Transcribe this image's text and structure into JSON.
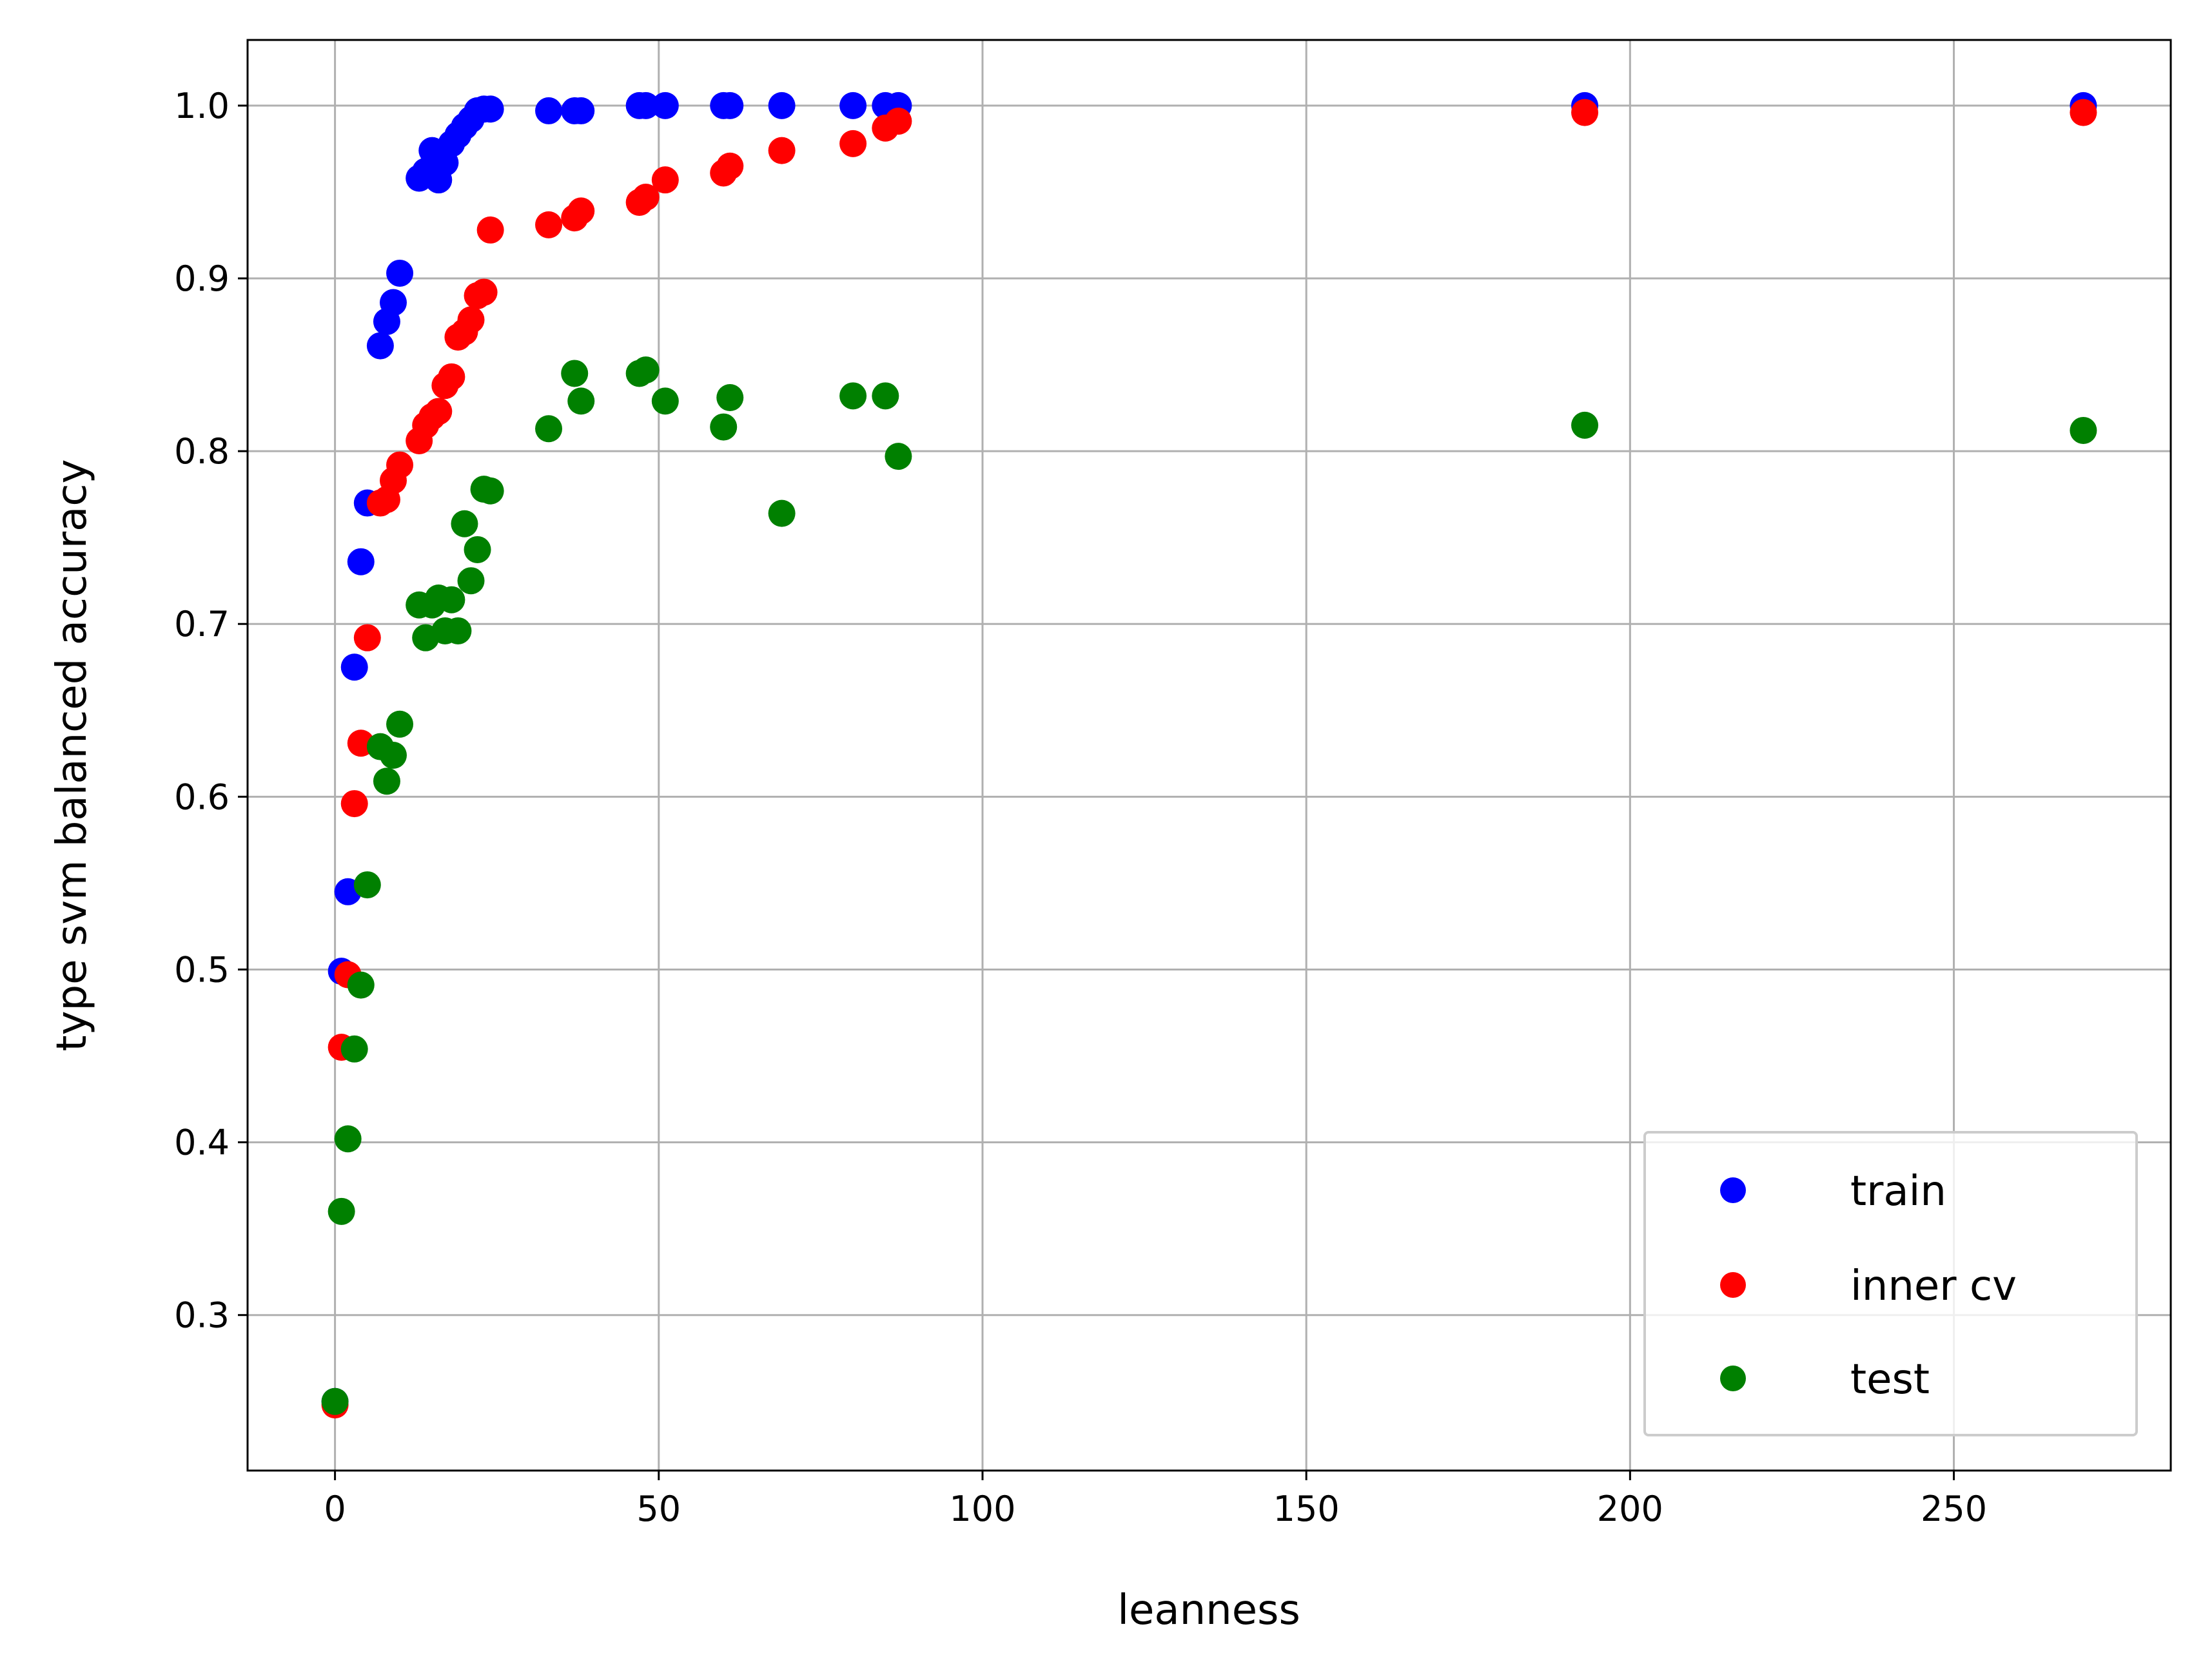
{
  "chart_data": {
    "type": "scatter",
    "title": "",
    "xlabel": "leanness",
    "ylabel": "type svm balanced accuracy",
    "xlim": [
      -13.5,
      283.5
    ],
    "ylim": [
      0.21,
      1.038
    ],
    "xticks": [
      0,
      50,
      100,
      150,
      200,
      250
    ],
    "xtick_labels": [
      "0",
      "50",
      "100",
      "150",
      "200",
      "250"
    ],
    "yticks": [
      0.3,
      0.4,
      0.5,
      0.6,
      0.7,
      0.8,
      0.9,
      1.0
    ],
    "ytick_labels": [
      "0.3",
      "0.4",
      "0.5",
      "0.6",
      "0.7",
      "0.8",
      "0.9",
      "1.0"
    ],
    "grid": true,
    "legend_position": "lower-right",
    "series": [
      {
        "name": "train",
        "color": "#0000ff",
        "points": [
          [
            0,
            0.25
          ],
          [
            1,
            0.499
          ],
          [
            2,
            0.545
          ],
          [
            3,
            0.675
          ],
          [
            4,
            0.736
          ],
          [
            5,
            0.77
          ],
          [
            7,
            0.861
          ],
          [
            8,
            0.875
          ],
          [
            9,
            0.886
          ],
          [
            10,
            0.903
          ],
          [
            13,
            0.958
          ],
          [
            14,
            0.962
          ],
          [
            15,
            0.974
          ],
          [
            16,
            0.957
          ],
          [
            17,
            0.967
          ],
          [
            18,
            0.978
          ],
          [
            19,
            0.983
          ],
          [
            20,
            0.988
          ],
          [
            21,
            0.992
          ],
          [
            22,
            0.997
          ],
          [
            23,
            0.998
          ],
          [
            24,
            0.998
          ],
          [
            33,
            0.997
          ],
          [
            37,
            0.997
          ],
          [
            38,
            0.997
          ],
          [
            47,
            1.0
          ],
          [
            48,
            1.0
          ],
          [
            51,
            1.0
          ],
          [
            60,
            1.0
          ],
          [
            61,
            1.0
          ],
          [
            69,
            1.0
          ],
          [
            80,
            1.0
          ],
          [
            85,
            1.0
          ],
          [
            87,
            1.0
          ],
          [
            193,
            1.0
          ],
          [
            270,
            1.0
          ]
        ]
      },
      {
        "name": "inner cv",
        "color": "#ff0000",
        "points": [
          [
            0,
            0.248
          ],
          [
            1,
            0.455
          ],
          [
            2,
            0.497
          ],
          [
            3,
            0.596
          ],
          [
            4,
            0.631
          ],
          [
            5,
            0.692
          ],
          [
            7,
            0.77
          ],
          [
            8,
            0.772
          ],
          [
            9,
            0.783
          ],
          [
            10,
            0.792
          ],
          [
            13,
            0.806
          ],
          [
            14,
            0.815
          ],
          [
            15,
            0.82
          ],
          [
            16,
            0.823
          ],
          [
            17,
            0.838
          ],
          [
            18,
            0.843
          ],
          [
            19,
            0.866
          ],
          [
            20,
            0.869
          ],
          [
            21,
            0.876
          ],
          [
            22,
            0.89
          ],
          [
            23,
            0.892
          ],
          [
            24,
            0.928
          ],
          [
            33,
            0.931
          ],
          [
            37,
            0.935
          ],
          [
            38,
            0.939
          ],
          [
            47,
            0.944
          ],
          [
            48,
            0.947
          ],
          [
            51,
            0.957
          ],
          [
            60,
            0.961
          ],
          [
            61,
            0.965
          ],
          [
            69,
            0.974
          ],
          [
            80,
            0.978
          ],
          [
            85,
            0.987
          ],
          [
            87,
            0.991
          ],
          [
            193,
            0.996
          ],
          [
            270,
            0.996
          ]
        ]
      },
      {
        "name": "test",
        "color": "#008000",
        "points": [
          [
            0,
            0.25
          ],
          [
            1,
            0.36
          ],
          [
            2,
            0.402
          ],
          [
            3,
            0.454
          ],
          [
            4,
            0.491
          ],
          [
            5,
            0.549
          ],
          [
            7,
            0.629
          ],
          [
            8,
            0.609
          ],
          [
            9,
            0.624
          ],
          [
            10,
            0.642
          ],
          [
            13,
            0.711
          ],
          [
            14,
            0.692
          ],
          [
            15,
            0.711
          ],
          [
            16,
            0.715
          ],
          [
            17,
            0.696
          ],
          [
            18,
            0.714
          ],
          [
            19,
            0.696
          ],
          [
            20,
            0.758
          ],
          [
            21,
            0.725
          ],
          [
            22,
            0.743
          ],
          [
            23,
            0.778
          ],
          [
            24,
            0.777
          ],
          [
            33,
            0.813
          ],
          [
            37,
            0.845
          ],
          [
            38,
            0.829
          ],
          [
            47,
            0.845
          ],
          [
            48,
            0.847
          ],
          [
            51,
            0.829
          ],
          [
            60,
            0.814
          ],
          [
            61,
            0.831
          ],
          [
            69,
            0.764
          ],
          [
            80,
            0.832
          ],
          [
            85,
            0.832
          ],
          [
            87,
            0.797
          ],
          [
            193,
            0.815
          ],
          [
            270,
            0.812
          ]
        ]
      }
    ]
  }
}
